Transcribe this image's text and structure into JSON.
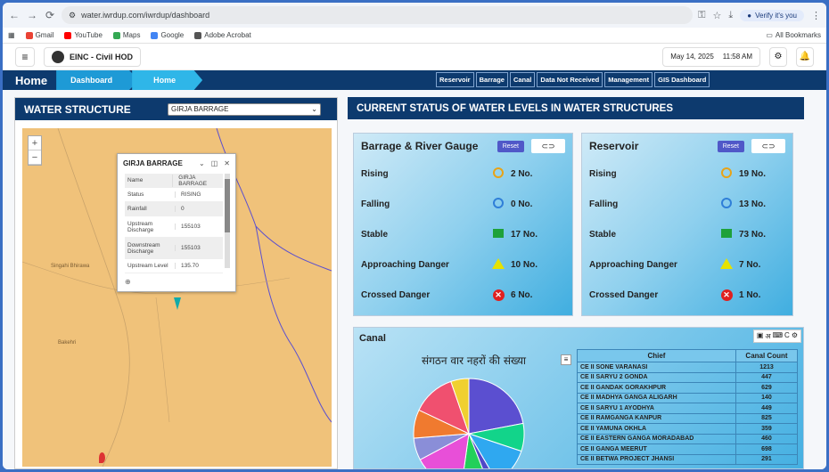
{
  "browser": {
    "url": "water.iwrdup.com/iwrdup/dashboard",
    "verify_label": "Verify it's you",
    "bookmarks": [
      "Gmail",
      "YouTube",
      "Maps",
      "Google",
      "Adobe Acrobat"
    ],
    "all_bookmarks": "All Bookmarks"
  },
  "header": {
    "user": "EINC - Civil HOD",
    "date": "May 14, 2025",
    "time": "11:58 AM"
  },
  "breadcrumb": {
    "home": "Home",
    "crumbs": [
      "Dashboard",
      "Home"
    ]
  },
  "top_nav": [
    "Reservoir",
    "Barrage",
    "Canal",
    "Data Not Received",
    "Management",
    "GIS Dashboard"
  ],
  "water_structure": {
    "title": "WATER STRUCTURE",
    "selected": "GIRJA BARRAGE",
    "map_labels": [
      "Singahi Bhirawa",
      "Bakehri"
    ],
    "popup": {
      "title": "GIRJA BARRAGE",
      "rows": [
        {
          "k": "Name",
          "v": "GIRJA BARRAGE"
        },
        {
          "k": "Status",
          "v": "RISING"
        },
        {
          "k": "Rainfall",
          "v": "0"
        },
        {
          "k": "Upstream Discharge",
          "v": "155103"
        },
        {
          "k": "Downstream Discharge",
          "v": "155103"
        },
        {
          "k": "Upstream Level",
          "v": "135.70"
        }
      ]
    }
  },
  "status": {
    "title": "CURRENT STATUS OF WATER LEVELS IN WATER STRUCTURES",
    "reset_label": "Reset",
    "barrage": {
      "title": "Barrage & River Gauge",
      "rows": [
        {
          "label": "Rising",
          "value": "2 No."
        },
        {
          "label": "Falling",
          "value": "0 No."
        },
        {
          "label": "Stable",
          "value": "17 No."
        },
        {
          "label": "Approaching Danger",
          "value": "10 No."
        },
        {
          "label": "Crossed Danger",
          "value": "6 No."
        }
      ]
    },
    "reservoir": {
      "title": "Reservoir",
      "rows": [
        {
          "label": "Rising",
          "value": "19 No."
        },
        {
          "label": "Falling",
          "value": "13 No."
        },
        {
          "label": "Stable",
          "value": "73 No."
        },
        {
          "label": "Approaching Danger",
          "value": "7 No."
        },
        {
          "label": "Crossed Danger",
          "value": "1 No."
        }
      ]
    }
  },
  "canal": {
    "title": "Canal",
    "chart_title": "संगठन वार नहरों की संख्या",
    "table_headers": [
      "Chief",
      "Canal Count"
    ],
    "rows": [
      {
        "chief": "CE II SONE VARANASI",
        "count": "1213"
      },
      {
        "chief": "CE II SARYU 2 GONDA",
        "count": "447"
      },
      {
        "chief": "CE II GANDAK GORAKHPUR",
        "count": "629"
      },
      {
        "chief": "CE II MADHYA GANGA ALIGARH",
        "count": "140"
      },
      {
        "chief": "CE II SARYU 1 AYODHYA",
        "count": "449"
      },
      {
        "chief": "CE II RAMGANGA KANPUR",
        "count": "825"
      },
      {
        "chief": "CE II YAMUNA OKHLA",
        "count": "359"
      },
      {
        "chief": "CE II EASTERN GANGA MORADABAD",
        "count": "460"
      },
      {
        "chief": "CE II GANGA MEERUT",
        "count": "698"
      },
      {
        "chief": "CE II BETWA PROJECT JHANSI",
        "count": "291"
      }
    ]
  },
  "chart_data": {
    "type": "pie",
    "title": "संगठन वार नहरों की संख्या",
    "categories": [
      "CE II SONE VARANASI",
      "CE II SARYU 2 GONDA",
      "CE II GANDAK GORAKHPUR",
      "CE II MADHYA GANGA ALIGARH",
      "CE II SARYU 1 AYODHYA",
      "CE II RAMGANGA KANPUR",
      "CE II YAMUNA OKHLA",
      "CE II EASTERN GANGA MORADABAD",
      "CE II GANGA MEERUT",
      "CE II BETWA PROJECT JHANSI"
    ],
    "values": [
      1213,
      447,
      629,
      140,
      449,
      825,
      359,
      460,
      698,
      291
    ],
    "colors": [
      "#5b4fd0",
      "#12d48a",
      "#2fa8f0",
      "#5048c8",
      "#22d05a",
      "#e84fd8",
      "#8a8ed8",
      "#f07a2f",
      "#f0506f",
      "#f0d030"
    ]
  }
}
